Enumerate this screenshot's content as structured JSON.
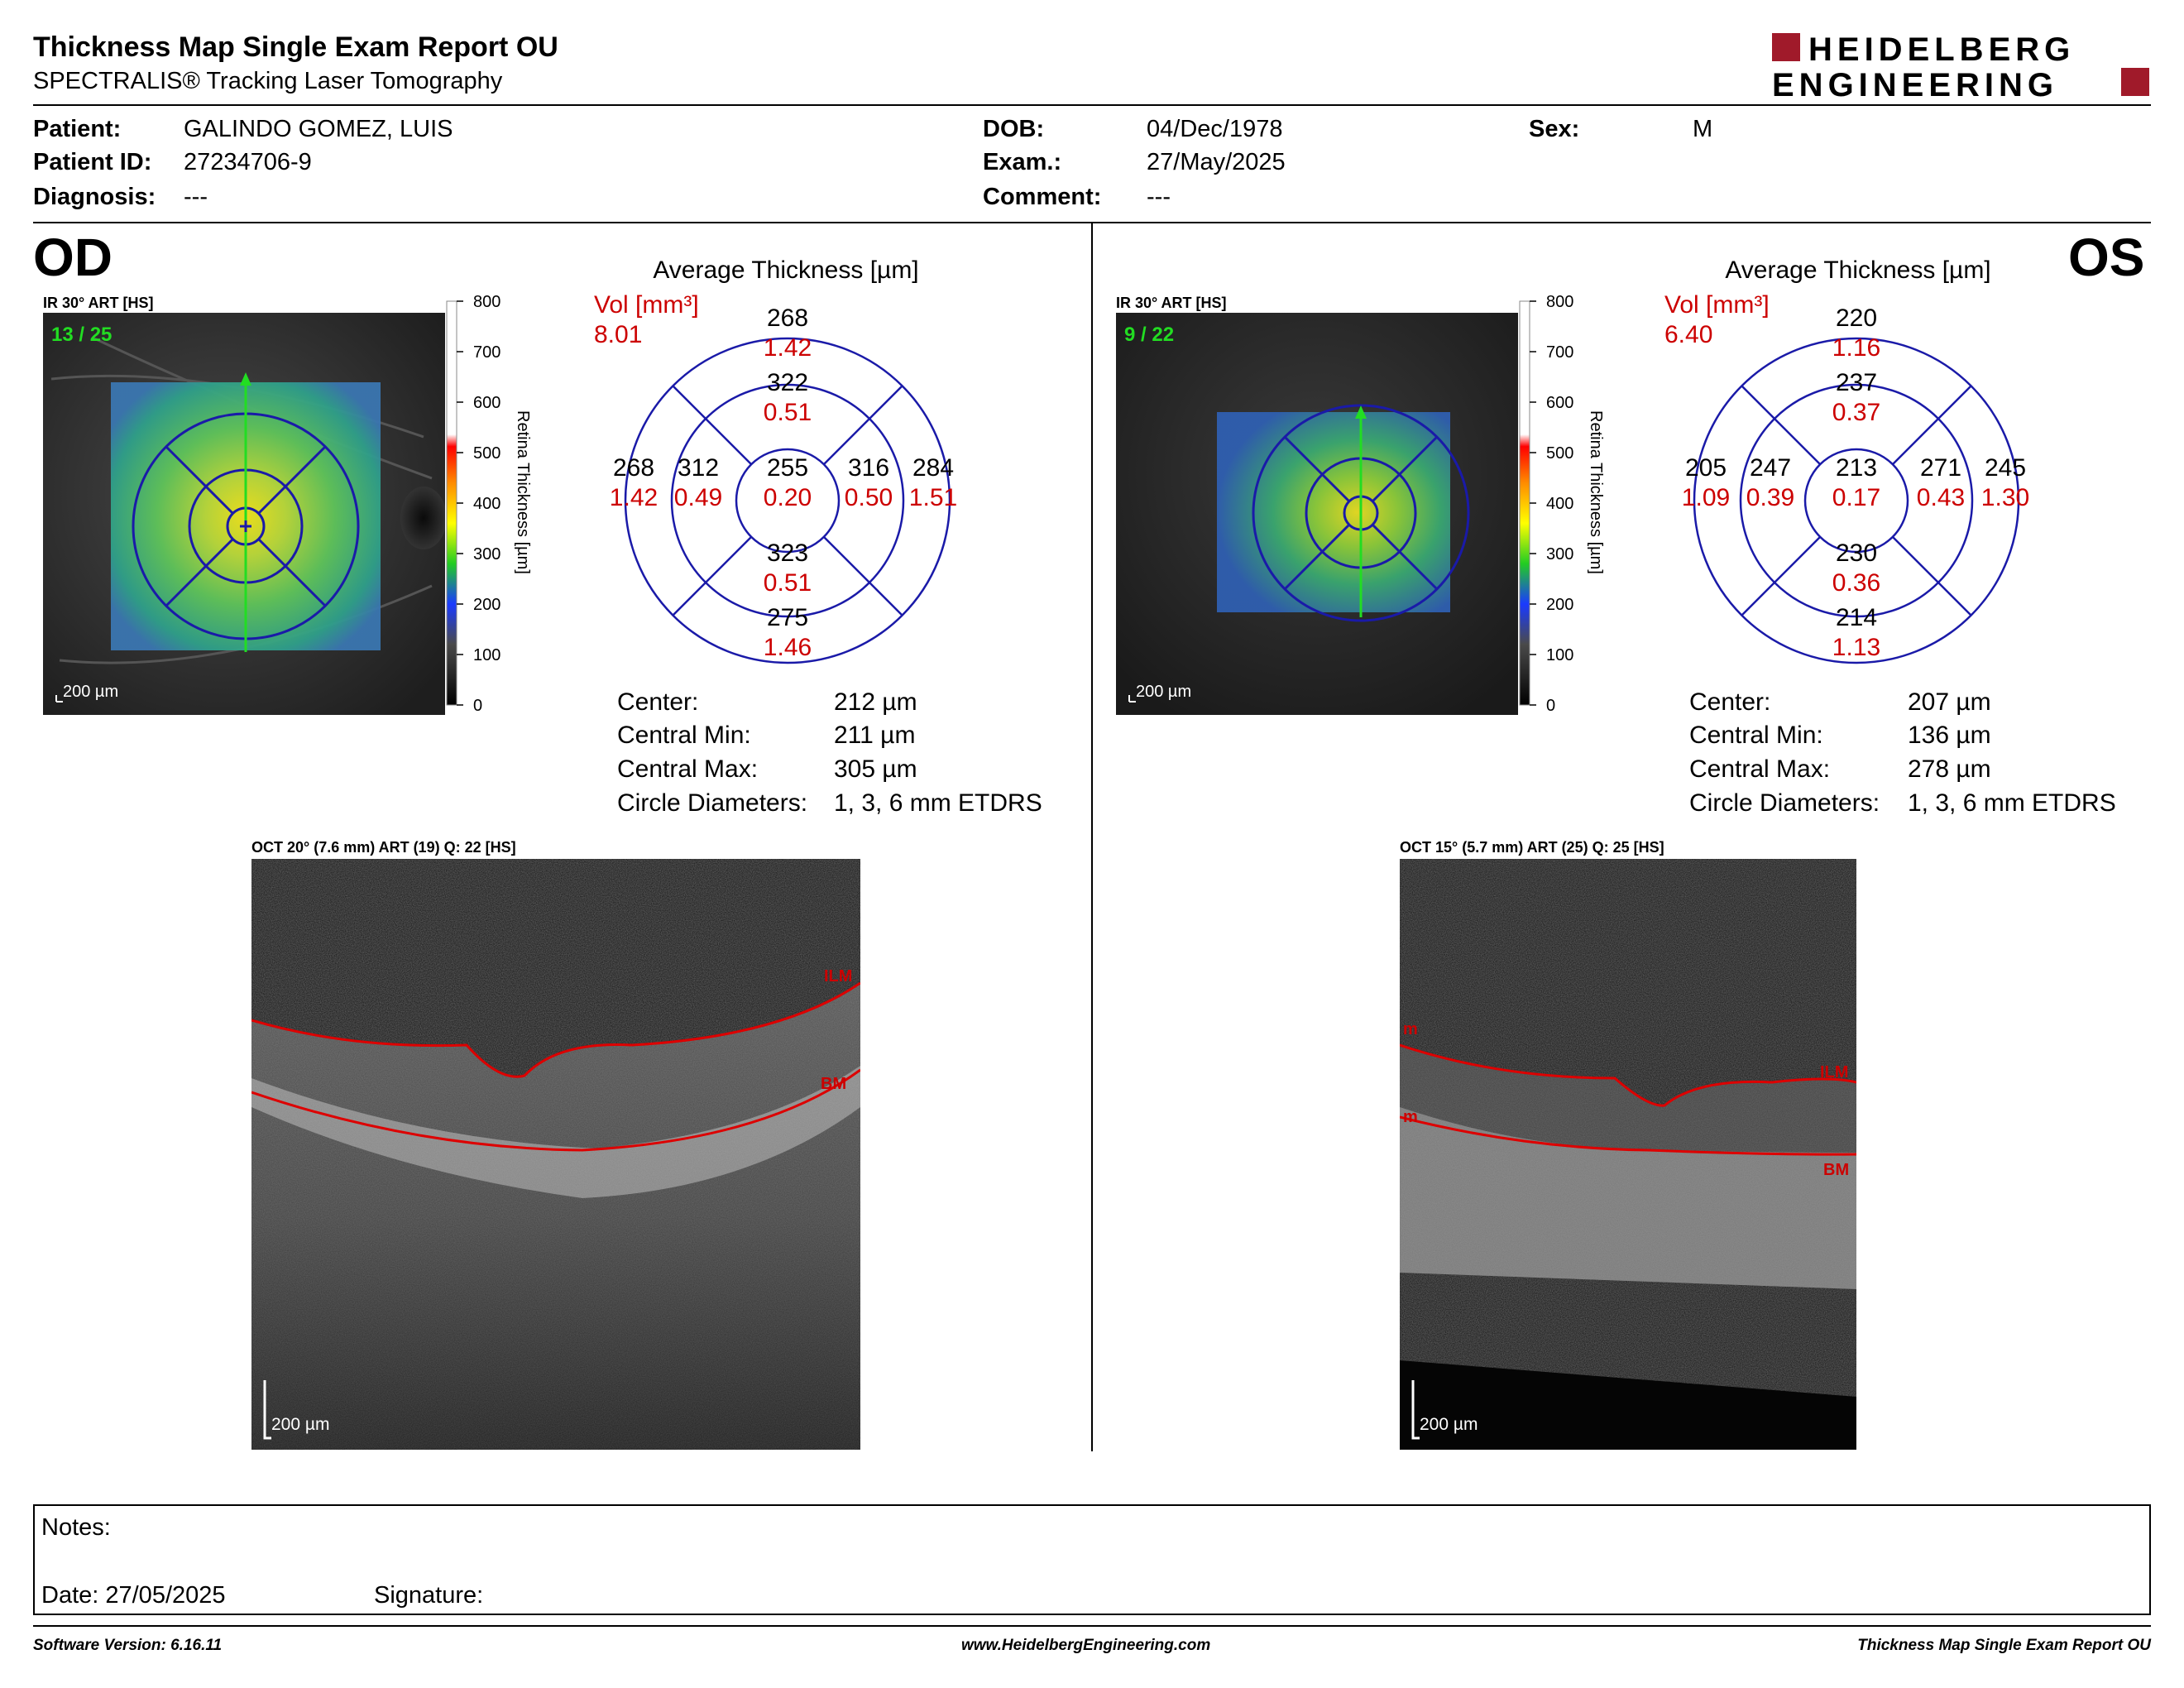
{
  "header": {
    "title": "Thickness Map Single Exam Report OU",
    "subtitle": "SPECTRALIS® Tracking Laser Tomography",
    "logo_line1": "HEIDELBERG",
    "logo_line2": "ENGINEERING"
  },
  "patient": {
    "patient_label": "Patient:",
    "patient_value": "GALINDO GOMEZ, LUIS",
    "id_label": "Patient ID:",
    "id_value": "27234706-9",
    "diagnosis_label": "Diagnosis:",
    "diagnosis_value": "---",
    "dob_label": "DOB:",
    "dob_value": "04/Dec/1978",
    "exam_label": "Exam.:",
    "exam_value": "27/May/2025",
    "comment_label": "Comment:",
    "comment_value": "---",
    "sex_label": "Sex:",
    "sex_value": "M"
  },
  "od": {
    "eye": "OD",
    "ir_label": "IR 30° ART [HS]",
    "frame_count": "13 / 25",
    "scale_bar": "200 µm",
    "colorbar_ticks": [
      "800",
      "700",
      "600",
      "500",
      "400",
      "300",
      "200",
      "100",
      "0"
    ],
    "colorbar_label": "Retina Thickness [µm]",
    "avg_title": "Average Thickness [µm]",
    "vol_label": "Vol [mm³]",
    "vol_value": "8.01",
    "etdrs": {
      "outer_top": "268",
      "outer_top_vol": "1.42",
      "inner_top": "322",
      "inner_top_vol": "0.51",
      "outer_left": "268",
      "outer_left_vol": "1.42",
      "inner_left": "312",
      "inner_left_vol": "0.49",
      "center": "255",
      "center_vol": "0.20",
      "inner_right": "316",
      "inner_right_vol": "0.50",
      "outer_right": "284",
      "outer_right_vol": "1.51",
      "inner_bottom": "323",
      "inner_bottom_vol": "0.51",
      "outer_bottom": "275",
      "outer_bottom_vol": "1.46"
    },
    "stats": {
      "center_label": "Center:",
      "center_value": "212 µm",
      "min_label": "Central Min:",
      "min_value": "211 µm",
      "max_label": "Central Max:",
      "max_value": "305 µm",
      "diam_label": "Circle Diameters:",
      "diam_value": "1, 3, 6 mm ETDRS"
    },
    "oct_label": "OCT 20° (7.6 mm) ART (19) Q: 22 [HS]",
    "oct_scale": "200 µm",
    "ilm": "ILM",
    "bm": "BM"
  },
  "os": {
    "eye": "OS",
    "ir_label": "IR 30° ART [HS]",
    "frame_count": "9 / 22",
    "scale_bar": "200 µm",
    "colorbar_ticks": [
      "800",
      "700",
      "600",
      "500",
      "400",
      "300",
      "200",
      "100",
      "0"
    ],
    "colorbar_label": "Retina Thickness [µm]",
    "avg_title": "Average Thickness [µm]",
    "vol_label": "Vol [mm³]",
    "vol_value": "6.40",
    "etdrs": {
      "outer_top": "220",
      "outer_top_vol": "1.16",
      "inner_top": "237",
      "inner_top_vol": "0.37",
      "outer_left": "205",
      "outer_left_vol": "1.09",
      "inner_left": "247",
      "inner_left_vol": "0.39",
      "center": "213",
      "center_vol": "0.17",
      "inner_right": "271",
      "inner_right_vol": "0.43",
      "outer_right": "245",
      "outer_right_vol": "1.30",
      "inner_bottom": "230",
      "inner_bottom_vol": "0.36",
      "outer_bottom": "214",
      "outer_bottom_vol": "1.13"
    },
    "stats": {
      "center_label": "Center:",
      "center_value": "207 µm",
      "min_label": "Central Min:",
      "min_value": "136 µm",
      "max_label": "Central Max:",
      "max_value": "278 µm",
      "diam_label": "Circle Diameters:",
      "diam_value": "1, 3, 6 mm ETDRS"
    },
    "oct_label": "OCT 15° (5.7 mm) ART (25) Q: 25 [HS]",
    "oct_scale": "200 µm",
    "ilm": "ILM",
    "bm": "BM",
    "m_top": "m",
    "m_bottom": "m"
  },
  "notes": {
    "notes_label": "Notes:",
    "date_label": "Date: 27/05/2025",
    "signature_label": "Signature:"
  },
  "footer": {
    "software": "Software Version: 6.16.11",
    "website": "www.HeidelbergEngineering.com",
    "report": "Thickness Map Single Exam Report OU"
  },
  "colors": {
    "accent_red": "#cc0000",
    "logo_red": "#a01a2a",
    "grid_blue": "#1a1aa8",
    "frame_green": "#22dd22"
  }
}
